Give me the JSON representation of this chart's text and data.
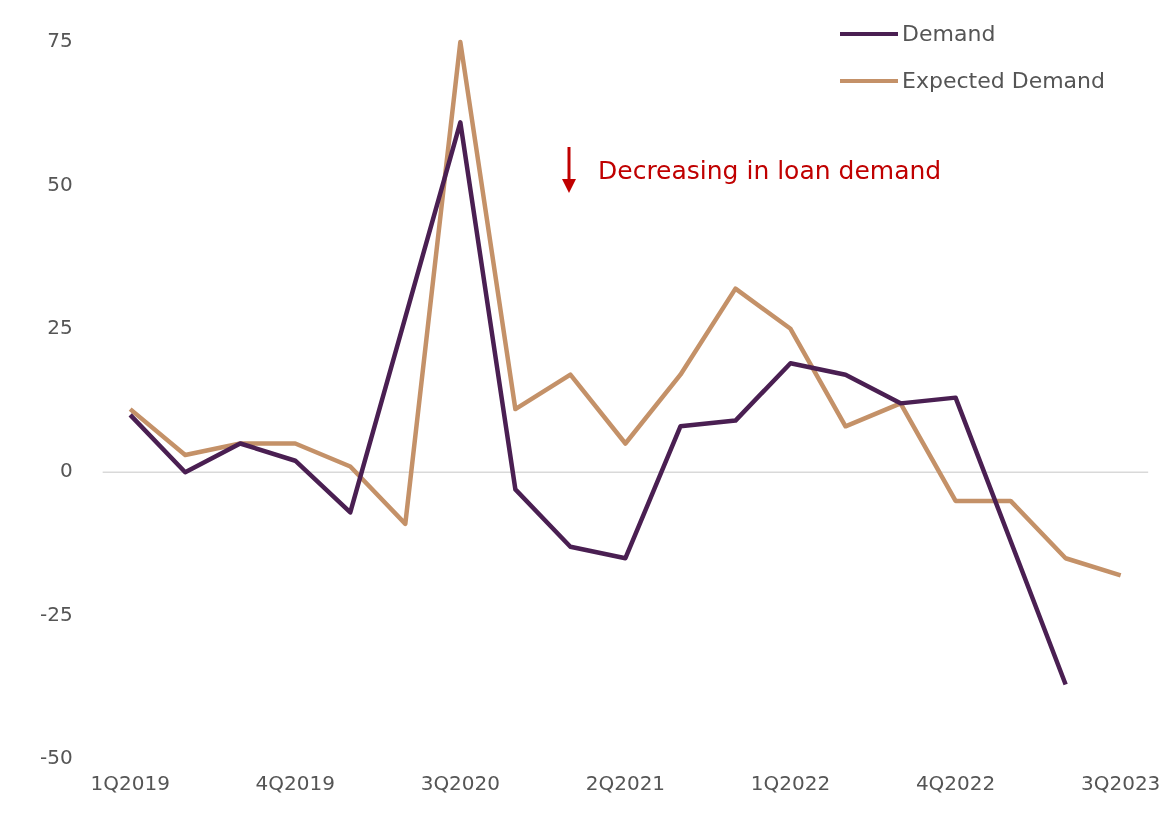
{
  "chart_data": {
    "type": "line",
    "categories": [
      "1Q2019",
      null,
      null,
      "4Q2019",
      null,
      null,
      "3Q2020",
      null,
      null,
      "2Q2021",
      null,
      null,
      "1Q2022",
      null,
      null,
      "4Q2022",
      null,
      null,
      "3Q2023"
    ],
    "series": [
      {
        "name": "Demand",
        "color": "#4a1f52",
        "values": [
          10,
          0,
          5,
          2,
          -7,
          27,
          61,
          -3,
          -13,
          -15,
          8,
          9,
          19,
          17,
          12,
          13,
          -12,
          -37,
          null
        ]
      },
      {
        "name": "Expected Demand",
        "color": "#c49168",
        "values": [
          11,
          3,
          5,
          5,
          1,
          -9,
          75,
          11,
          17,
          5,
          17,
          32,
          25,
          8,
          12,
          -5,
          -5,
          -15,
          -18
        ]
      }
    ],
    "ylim": [
      -50,
      75
    ],
    "yticks": [
      -50,
      -25,
      0,
      25,
      50,
      75
    ],
    "ref_lines": [
      {
        "axis": "y",
        "value": 0,
        "color": "#d9d9d9"
      }
    ],
    "annotations": [
      "Decreasing in loan demand"
    ],
    "legend": "top right",
    "grid": false,
    "marker": "none"
  }
}
